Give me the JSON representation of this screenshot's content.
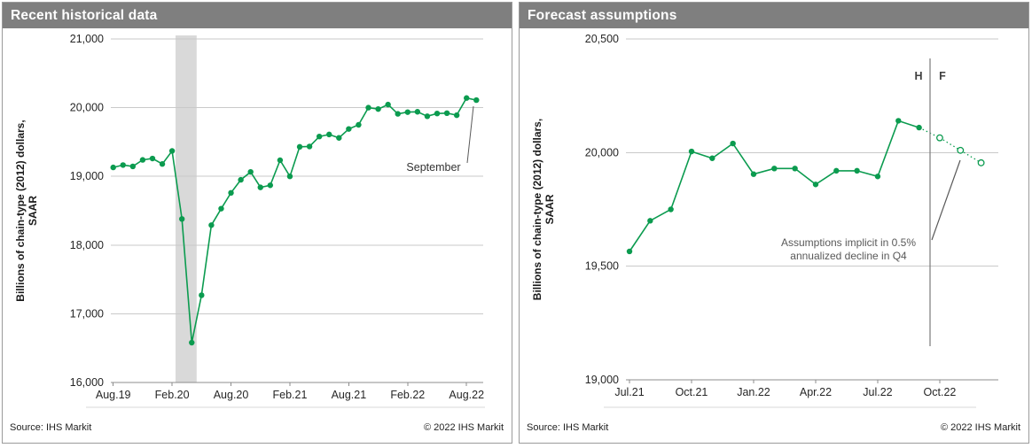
{
  "colors": {
    "accent_green": "#0b9b4f",
    "header_gray": "#7f7f7f",
    "band_gray": "#d9d9d9",
    "grid_gray": "#c9c9c9",
    "axis_gray": "#8c8c8c",
    "annotation_gray": "#595959",
    "tick_text": "#262626"
  },
  "panels": [
    {
      "title": "Recent historical data",
      "footer": {
        "source": "Source: IHS Markit",
        "copyright": "© 2022  IHS Markit"
      }
    },
    {
      "title": "Forecast assumptions",
      "footer": {
        "source": "Source: IHS Markit",
        "copyright": "© 2022  IHS Markit"
      }
    }
  ],
  "chart_data": [
    {
      "type": "line",
      "title": "Recent historical data",
      "ylabel_line1": "Billions of chain-type (2012) dollars,",
      "ylabel_line2": "SAAR",
      "ylim": [
        16000,
        21000
      ],
      "yticks": [
        16000,
        17000,
        18000,
        19000,
        20000,
        21000
      ],
      "grid": true,
      "legend": false,
      "xticks": [
        {
          "label": "Aug.19",
          "m": 0
        },
        {
          "label": "Feb.20",
          "m": 6
        },
        {
          "label": "Aug.20",
          "m": 12
        },
        {
          "label": "Feb.21",
          "m": 18
        },
        {
          "label": "Aug.21",
          "m": 24
        },
        {
          "label": "Feb.22",
          "m": 30
        },
        {
          "label": "Aug.22",
          "m": 36
        }
      ],
      "x_months": [
        "Aug.19",
        "Sep.19",
        "Oct.19",
        "Nov.19",
        "Dec.19",
        "Jan.20",
        "Feb.20",
        "Mar.20",
        "Apr.20",
        "May.20",
        "Jun.20",
        "Jul.20",
        "Aug.20",
        "Sep.20",
        "Oct.20",
        "Nov.20",
        "Dec.20",
        "Jan.21",
        "Feb.21",
        "Mar.21",
        "Apr.21",
        "May.21",
        "Jun.21",
        "Jul.21",
        "Aug.21",
        "Sep.21",
        "Oct.21",
        "Nov.21",
        "Dec.21",
        "Jan.22",
        "Feb.22",
        "Mar.22",
        "Apr.22",
        "May.22",
        "Jun.22",
        "Jul.22",
        "Aug.22",
        "Sep.22"
      ],
      "recession_band_months": [
        6.35,
        8.5
      ],
      "series": [
        {
          "name": "history",
          "values": [
            19130,
            19165,
            19145,
            19240,
            19260,
            19180,
            19370,
            18380,
            16580,
            17270,
            18290,
            18530,
            18760,
            18950,
            19065,
            18840,
            18870,
            19235,
            19000,
            19430,
            19435,
            19580,
            19610,
            19560,
            19690,
            19750,
            20000,
            19980,
            20045,
            19910,
            19935,
            19940,
            19875,
            19915,
            19920,
            19890,
            20140,
            20110
          ]
        }
      ],
      "annotation": {
        "label": "September"
      }
    },
    {
      "type": "line",
      "title": "Forecast assumptions",
      "ylabel_line1": "Billions of chain-type (2012) dollars,",
      "ylabel_line2": "SAAR",
      "ylim": [
        19000,
        20500
      ],
      "yticks": [
        19000,
        19500,
        20000,
        20500
      ],
      "grid": true,
      "legend": false,
      "xticks": [
        {
          "label": "Jul.21",
          "m": 0
        },
        {
          "label": "Oct.21",
          "m": 3
        },
        {
          "label": "Jan.22",
          "m": 6
        },
        {
          "label": "Apr.22",
          "m": 9
        },
        {
          "label": "Jul.22",
          "m": 12
        },
        {
          "label": "Oct.22",
          "m": 15
        }
      ],
      "x_months": [
        "Jul.21",
        "Aug.21",
        "Sep.21",
        "Oct.21",
        "Nov.21",
        "Dec.21",
        "Jan.22",
        "Feb.22",
        "Mar.22",
        "Apr.22",
        "May.22",
        "Jun.22",
        "Jul.22",
        "Aug.22",
        "Sep.22",
        "Oct.22",
        "Nov.22",
        "Dec.22"
      ],
      "series": [
        {
          "name": "history_and_forecast",
          "forecast_from_index": 15,
          "values": [
            19565,
            19700,
            19750,
            20005,
            19975,
            20040,
            19905,
            19930,
            19930,
            19860,
            19920,
            19920,
            19895,
            20140,
            20110,
            20065,
            20010,
            19955
          ]
        }
      ],
      "hf_labels": {
        "history": "H",
        "forecast": "F"
      },
      "annotation": {
        "line1": "Assumptions implicit in 0.5%",
        "line2": "annualized decline in Q4"
      }
    }
  ]
}
